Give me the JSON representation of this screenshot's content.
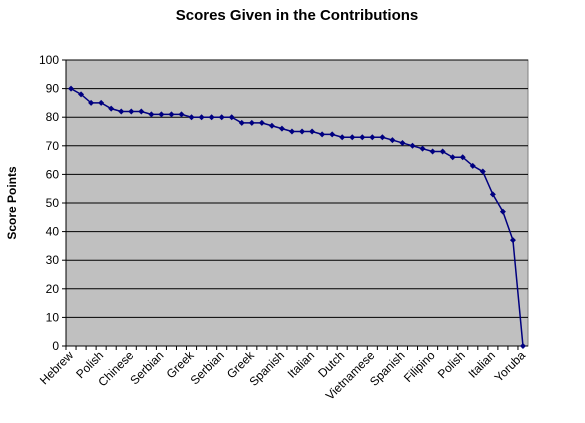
{
  "chart_data": {
    "type": "line",
    "title": "Scores Given in the Contributions",
    "ylabel": "Score Points",
    "categories": [
      "Hebrew",
      null,
      null,
      "Polish",
      null,
      null,
      "Chinese",
      null,
      null,
      "Serbian",
      null,
      null,
      "Greek",
      null,
      null,
      "Serbian",
      null,
      null,
      "Greek",
      null,
      null,
      "Spanish",
      null,
      null,
      "Italian",
      null,
      null,
      "Dutch",
      null,
      null,
      "Vietnamese",
      null,
      null,
      "Spanish",
      null,
      null,
      "Filipino",
      null,
      null,
      "Polish",
      null,
      null,
      "Italian",
      null,
      null,
      "Yoruba"
    ],
    "series": [
      {
        "name": "Score Points",
        "color": "#000080",
        "values": [
          90,
          88,
          85,
          85,
          83,
          82,
          82,
          82,
          81,
          81,
          81,
          81,
          80,
          80,
          80,
          80,
          80,
          78,
          78,
          78,
          77,
          76,
          75,
          75,
          75,
          74,
          74,
          73,
          73,
          73,
          73,
          73,
          72,
          71,
          70,
          69,
          68,
          68,
          66,
          66,
          63,
          61,
          53,
          47,
          37,
          0
        ]
      }
    ],
    "ylim": [
      0,
      100
    ],
    "yticks": [
      0,
      10,
      20,
      30,
      40,
      50,
      60,
      70,
      80,
      90,
      100
    ],
    "grid": true,
    "plot_background": "#c0c0c0"
  }
}
